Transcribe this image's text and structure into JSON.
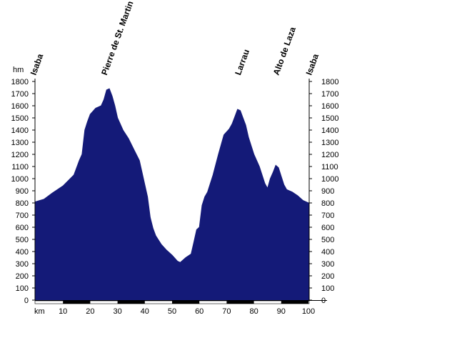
{
  "chart_data": {
    "type": "area",
    "y_unit_label": "hm",
    "x_unit_label": "km",
    "xlim": [
      0,
      100
    ],
    "ylim": [
      0,
      1800
    ],
    "x_ticks": [
      10,
      20,
      30,
      40,
      50,
      60,
      70,
      80,
      90,
      100
    ],
    "y_ticks": [
      0,
      100,
      200,
      300,
      400,
      500,
      600,
      700,
      800,
      900,
      1000,
      1100,
      1200,
      1300,
      1400,
      1500,
      1600,
      1700,
      1800
    ],
    "fill_color": "#141a78",
    "right_axis": true,
    "places": [
      {
        "name": "Isaba",
        "km": 0
      },
      {
        "name": "Pierre de St. Martin",
        "km": 26
      },
      {
        "name": "Larrau",
        "km": 75
      },
      {
        "name": "Alto de Laza",
        "km": 89
      },
      {
        "name": "Isaba",
        "km": 101
      }
    ],
    "profile": {
      "x": [
        0,
        3,
        6,
        10,
        14,
        16,
        17,
        18,
        19,
        20,
        22,
        23,
        24,
        25,
        26,
        27,
        28,
        29,
        30,
        31,
        32,
        34,
        36,
        38,
        39,
        40,
        41,
        42,
        43,
        44,
        46,
        48,
        50,
        52,
        53,
        55,
        57,
        58,
        59,
        60,
        61,
        62,
        63,
        65,
        67,
        69,
        71,
        72,
        73,
        74,
        75,
        76,
        77,
        78,
        80,
        82,
        84,
        85,
        86,
        87,
        88,
        89,
        90,
        91,
        92,
        94,
        96,
        98,
        100
      ],
      "y": [
        810,
        830,
        880,
        940,
        1030,
        1150,
        1200,
        1400,
        1470,
        1530,
        1580,
        1590,
        1600,
        1650,
        1730,
        1740,
        1680,
        1600,
        1500,
        1450,
        1400,
        1330,
        1240,
        1150,
        1050,
        950,
        850,
        680,
        590,
        530,
        460,
        410,
        370,
        320,
        310,
        350,
        380,
        480,
        580,
        600,
        780,
        850,
        890,
        1030,
        1200,
        1360,
        1410,
        1450,
        1510,
        1570,
        1560,
        1500,
        1440,
        1340,
        1200,
        1100,
        960,
        920,
        1000,
        1050,
        1110,
        1090,
        1020,
        950,
        910,
        890,
        860,
        820,
        800
      ]
    }
  }
}
